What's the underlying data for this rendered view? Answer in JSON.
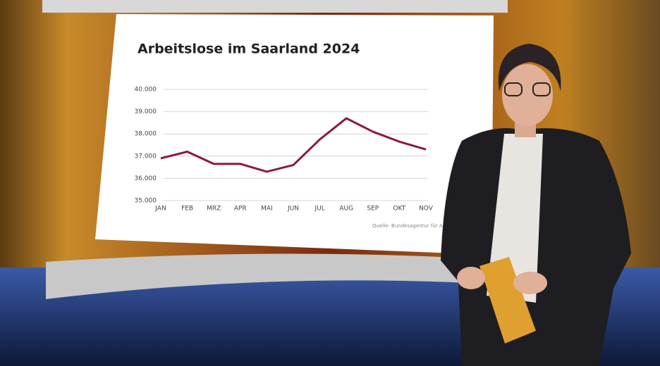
{
  "chart_data": {
    "type": "line",
    "title": "Arbeitslose im Saarland 2024",
    "source": "Quelle: Bundesagentur für Ar",
    "categories": [
      "JAN",
      "FEB",
      "MRZ",
      "APR",
      "MAI",
      "JUN",
      "JUL",
      "AUG",
      "SEP",
      "OKT",
      "NOV"
    ],
    "values": [
      36900,
      37200,
      36650,
      36650,
      36300,
      36600,
      37750,
      38700,
      38100,
      37650,
      37300
    ],
    "color": "#8c1a3c",
    "ylim": [
      35000,
      40000
    ],
    "yticks": [
      {
        "value": 35000,
        "label": "35.000"
      },
      {
        "value": 36000,
        "label": "36.000"
      },
      {
        "value": 37000,
        "label": "37.000"
      },
      {
        "value": 38000,
        "label": "38.000"
      },
      {
        "value": 39000,
        "label": "39.000"
      },
      {
        "value": 40000,
        "label": "40.000"
      }
    ],
    "grid": true
  }
}
